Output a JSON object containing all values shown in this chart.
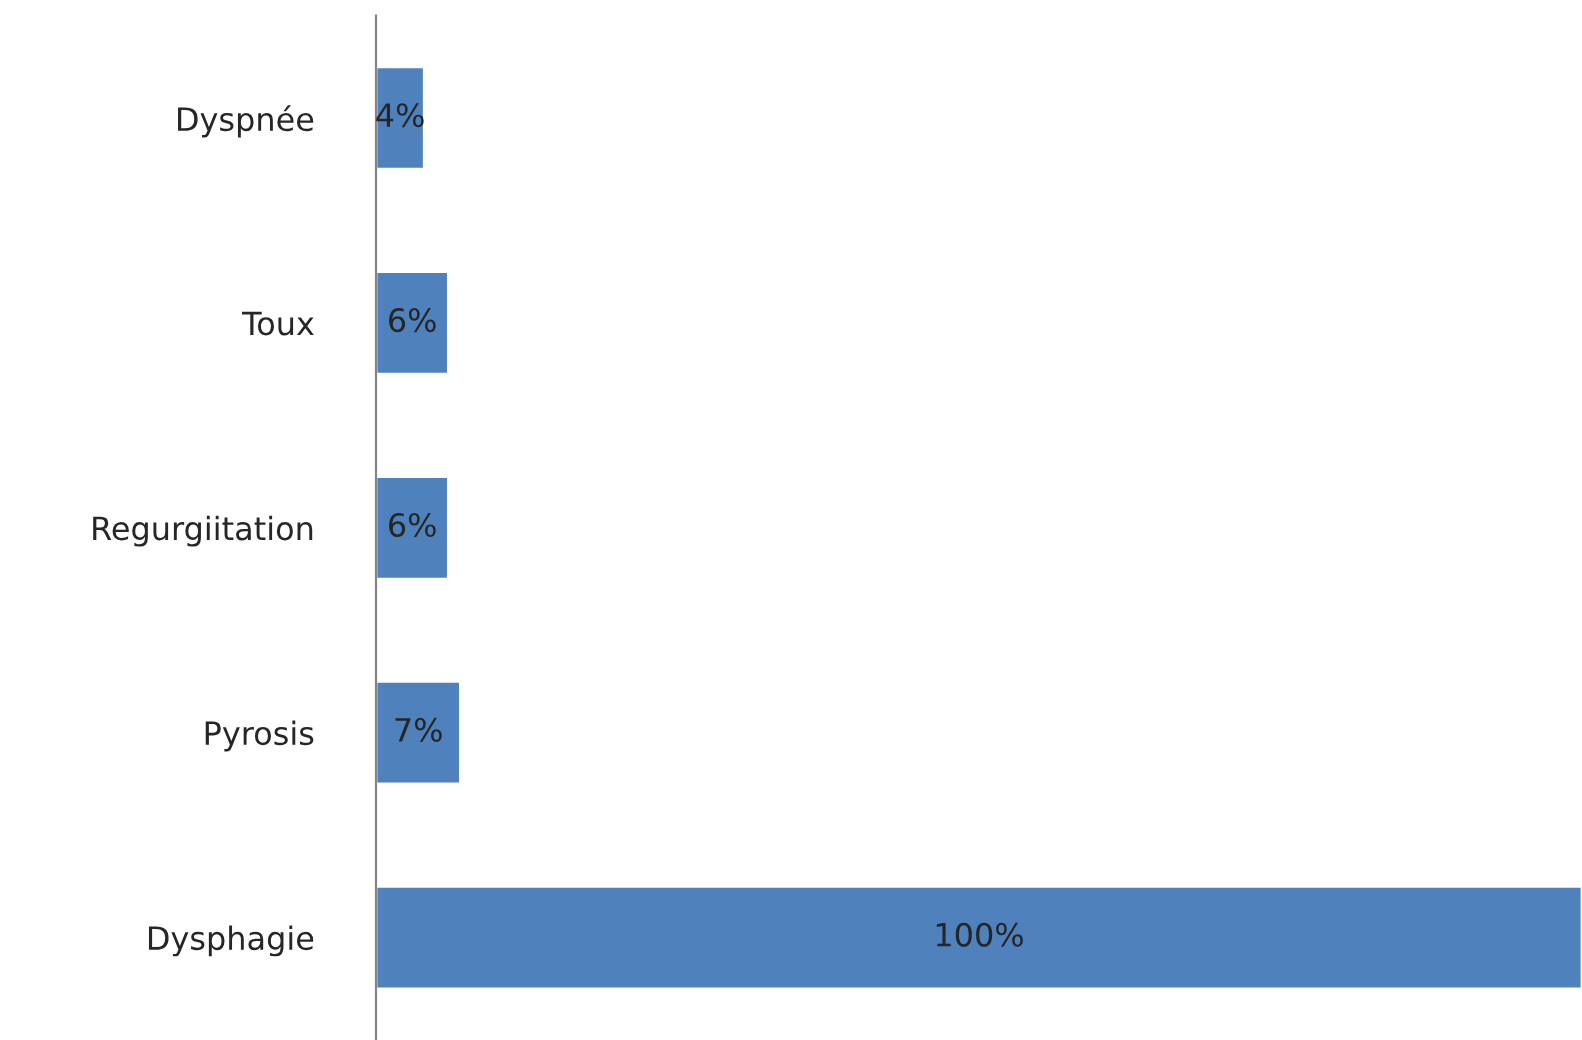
{
  "chart_data": {
    "type": "bar",
    "orientation": "horizontal",
    "categories": [
      "Dyspnée",
      "Toux",
      "Regurgiitation",
      "Pyrosis",
      "Dysphagie"
    ],
    "values": [
      4,
      6,
      6,
      7,
      100
    ],
    "value_labels": [
      "4%",
      "6%",
      "6%",
      "7%",
      "100%"
    ],
    "color": "#4f81bd",
    "grid": false,
    "legend": false
  }
}
